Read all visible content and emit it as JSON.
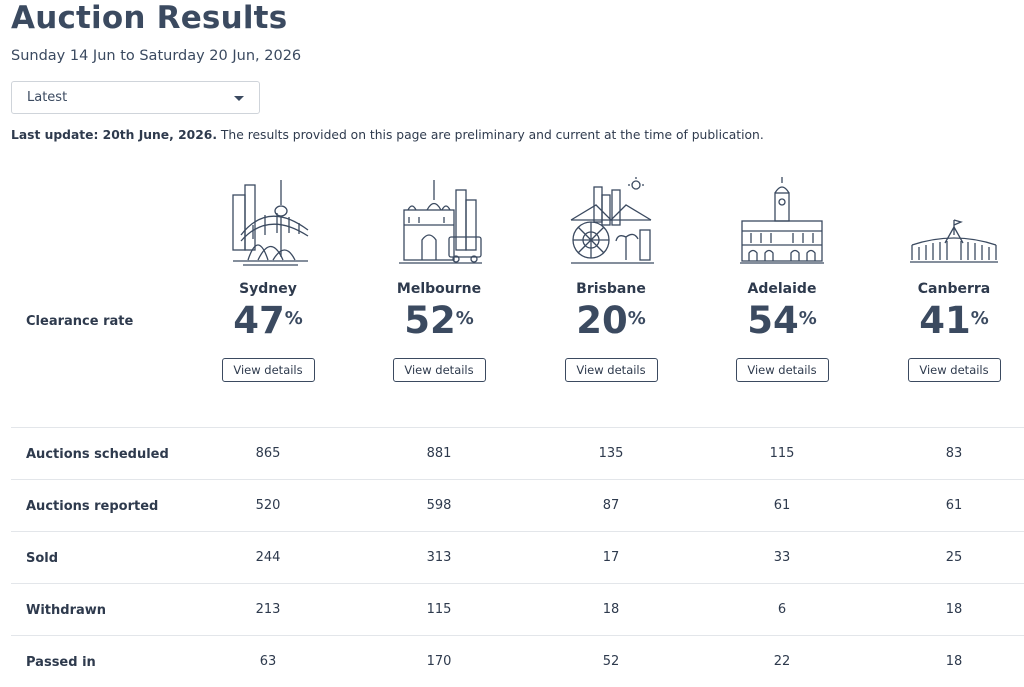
{
  "page": {
    "title": "Auction Results",
    "date_range": "Sunday 14 Jun to Saturday 20 Jun, 2026",
    "period_select": {
      "value": "Latest"
    },
    "last_update_bold": "Last update: 20th June, 2026.",
    "last_update_text": " The results provided on this page are preliminary and current at the time of publication."
  },
  "clearance_label": "Clearance rate",
  "view_details_label": "View details",
  "percent_sign": "%",
  "cities": [
    {
      "name": "Sydney",
      "rate": "47",
      "icon": "sydney-skyline-icon"
    },
    {
      "name": "Melbourne",
      "rate": "52",
      "icon": "melbourne-skyline-icon"
    },
    {
      "name": "Brisbane",
      "rate": "20",
      "icon": "brisbane-skyline-icon"
    },
    {
      "name": "Adelaide",
      "rate": "54",
      "icon": "adelaide-skyline-icon"
    },
    {
      "name": "Canberra",
      "rate": "41",
      "icon": "canberra-skyline-icon"
    }
  ],
  "table": {
    "rows": [
      {
        "label": "Auctions scheduled",
        "values": [
          "865",
          "881",
          "135",
          "115",
          "83"
        ]
      },
      {
        "label": "Auctions reported",
        "values": [
          "520",
          "598",
          "87",
          "61",
          "61"
        ]
      },
      {
        "label": "Sold",
        "values": [
          "244",
          "313",
          "17",
          "33",
          "25"
        ]
      },
      {
        "label": "Withdrawn",
        "values": [
          "213",
          "115",
          "18",
          "6",
          "18"
        ]
      },
      {
        "label": "Passed in",
        "values": [
          "63",
          "170",
          "52",
          "22",
          "18"
        ]
      }
    ]
  }
}
